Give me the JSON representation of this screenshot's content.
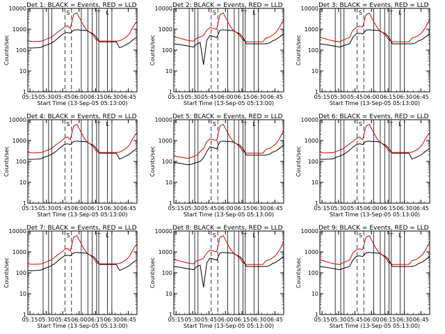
{
  "chart_data": {
    "type": "line",
    "layout_grid": "3x3",
    "y_scale": "log",
    "ylim": [
      1,
      10000
    ],
    "y_ticks": [
      1,
      10,
      100,
      1000,
      10000
    ],
    "y_tick_labels": [
      "1",
      "10",
      "100",
      "1000",
      "10000"
    ],
    "x_time_range": [
      "05:13",
      "06:53"
    ],
    "x_ticks_min": [
      2,
      17,
      32,
      47,
      62,
      77,
      92
    ],
    "x_tick_labels": [
      "05:15",
      "05:30",
      "05:45",
      "06:00",
      "06:15",
      "06:30",
      "06:45"
    ],
    "xlabel": "Start Time (13-Sep-05 05:13:00)",
    "ylabel": "Counts/sec",
    "legend": "in title",
    "colors": {
      "events": "#000000",
      "lld": "#cc0000",
      "axes": "#000000"
    },
    "time_min": [
      0,
      3,
      6,
      9,
      12,
      15,
      18,
      21,
      24,
      27,
      30,
      33,
      36,
      39,
      42,
      45,
      48,
      51,
      54,
      57,
      60,
      63,
      66,
      69,
      72,
      75,
      78,
      81,
      84,
      87,
      90,
      93,
      96,
      100
    ],
    "markers": {
      "solid_min": [
        14,
        19,
        22,
        49,
        55,
        59,
        63,
        65,
        73,
        77
      ],
      "dashed_min": [
        34,
        40
      ],
      "labels": [
        {
          "text": "S",
          "at_min": 37
        },
        {
          "text": "T",
          "at_min": 65
        },
        {
          "text": "L",
          "at_min": 73
        }
      ]
    },
    "panels": [
      {
        "title": "Det 1: BLACK = Events, RED = LLD",
        "series": [
          {
            "values": [
              130,
              125,
              128,
              130,
              135,
              160,
              180,
              210,
              260,
              350,
              480,
              620,
              700,
              650,
              900,
              950,
              900,
              900,
              850,
              700,
              600,
              400,
              250,
              250,
              250,
              250,
              250,
              250,
              130,
              150,
              180,
              220,
              300,
              420
            ]
          },
          {
            "values": [
              270,
              260,
              255,
              260,
              265,
              300,
              350,
              400,
              520,
              700,
              900,
              1200,
              1500,
              1100,
              5000,
              6000,
              3000,
              1500,
              900,
              700,
              500,
              300,
              270,
              270,
              270,
              270,
              270,
              270,
              280,
              330,
              420,
              600,
              1200,
              2500
            ]
          }
        ]
      },
      {
        "title": "Det 2: BLACK = Events, RED = LLD",
        "series": [
          {
            "values": [
              200,
              190,
              180,
              170,
              160,
              150,
              140,
              200,
              230,
              20,
              300,
              500,
              450,
              400,
              900,
              950,
              900,
              900,
              850,
              700,
              600,
              400,
              200,
              200,
              200,
              200,
              200,
              200,
              200,
              220,
              280,
              320,
              420,
              600
            ]
          },
          {
            "values": [
              450,
              400,
              360,
              330,
              300,
              280,
              270,
              380,
              420,
              500,
              900,
              1200,
              1100,
              1000,
              5000,
              6000,
              3000,
              1500,
              900,
              700,
              500,
              300,
              250,
              250,
              250,
              250,
              250,
              250,
              380,
              420,
              520,
              700,
              1200,
              3000
            ]
          }
        ]
      },
      {
        "title": "Det 3: BLACK = Events, RED = LLD",
        "series": [
          {
            "values": [
              200,
              190,
              180,
              170,
              160,
              150,
              140,
              160,
              180,
              200,
              400,
              600,
              650,
              600,
              900,
              950,
              900,
              900,
              850,
              700,
              600,
              400,
              200,
              200,
              200,
              200,
              200,
              200,
              200,
              220,
              280,
              320,
              420,
              600
            ]
          },
          {
            "values": [
              420,
              380,
              340,
              300,
              280,
              260,
              250,
              300,
              350,
              400,
              900,
              1200,
              1400,
              1300,
              5000,
              6000,
              3000,
              1500,
              900,
              700,
              500,
              300,
              250,
              250,
              250,
              250,
              250,
              250,
              380,
              420,
              520,
              700,
              1200,
              3000
            ]
          }
        ]
      },
      {
        "title": "Det 4: BLACK = Events, RED = LLD",
        "series": [
          {
            "values": [
              130,
              125,
              128,
              130,
              135,
              160,
              180,
              210,
              260,
              350,
              480,
              620,
              700,
              650,
              900,
              950,
              900,
              900,
              850,
              700,
              600,
              400,
              250,
              250,
              250,
              250,
              250,
              250,
              130,
              150,
              180,
              220,
              300,
              420
            ]
          },
          {
            "values": [
              270,
              260,
              255,
              260,
              265,
              300,
              350,
              400,
              520,
              700,
              900,
              1200,
              1500,
              1100,
              5000,
              6000,
              3000,
              1500,
              900,
              700,
              500,
              300,
              270,
              270,
              270,
              270,
              270,
              270,
              280,
              330,
              420,
              600,
              1200,
              2500
            ]
          }
        ]
      },
      {
        "title": "Det 5: BLACK = Events, RED = LLD",
        "series": [
          {
            "values": [
              90,
              85,
              80,
              75,
              70,
              70,
              80,
              90,
              100,
              150,
              300,
              500,
              450,
              400,
              900,
              950,
              900,
              900,
              850,
              700,
              600,
              400,
              200,
              200,
              200,
              200,
              200,
              200,
              200,
              220,
              280,
              320,
              420,
              600
            ]
          },
          {
            "values": [
              180,
              170,
              160,
              150,
              140,
              150,
              170,
              200,
              300,
              400,
              900,
              1200,
              1100,
              1000,
              5000,
              6000,
              3000,
              1500,
              900,
              700,
              500,
              300,
              250,
              250,
              250,
              250,
              250,
              250,
              380,
              420,
              520,
              700,
              1200,
              3000
            ]
          }
        ]
      },
      {
        "title": "Det 6: BLACK = Events, RED = LLD",
        "series": [
          {
            "values": [
              130,
              125,
              128,
              130,
              135,
              160,
              180,
              210,
              260,
              350,
              480,
              620,
              700,
              650,
              900,
              950,
              900,
              900,
              850,
              700,
              600,
              400,
              250,
              250,
              250,
              250,
              250,
              250,
              130,
              150,
              180,
              220,
              300,
              420
            ]
          },
          {
            "values": [
              270,
              260,
              255,
              260,
              265,
              300,
              350,
              400,
              520,
              700,
              900,
              1200,
              1500,
              1100,
              5000,
              6000,
              3000,
              1500,
              900,
              700,
              500,
              300,
              270,
              270,
              270,
              270,
              270,
              270,
              280,
              330,
              420,
              600,
              1200,
              2500
            ]
          }
        ]
      },
      {
        "title": "Det 7: BLACK = Events, RED = LLD",
        "series": [
          {
            "values": [
              130,
              125,
              128,
              130,
              135,
              160,
              180,
              210,
              260,
              350,
              480,
              620,
              700,
              650,
              900,
              950,
              900,
              900,
              850,
              700,
              600,
              400,
              250,
              250,
              250,
              250,
              250,
              250,
              130,
              150,
              180,
              220,
              300,
              420
            ]
          },
          {
            "values": [
              270,
              260,
              255,
              260,
              265,
              300,
              350,
              400,
              520,
              700,
              900,
              1200,
              1500,
              1100,
              5000,
              6000,
              3000,
              1500,
              900,
              700,
              500,
              300,
              270,
              270,
              270,
              270,
              270,
              270,
              280,
              330,
              420,
              600,
              1200,
              2500
            ]
          }
        ]
      },
      {
        "title": "Det 8: BLACK = Events, RED = LLD",
        "series": [
          {
            "values": [
              200,
              190,
              180,
              170,
              160,
              150,
              140,
              200,
              230,
              20,
              300,
              500,
              450,
              400,
              900,
              950,
              900,
              900,
              850,
              700,
              600,
              400,
              200,
              200,
              200,
              200,
              200,
              200,
              200,
              220,
              280,
              320,
              420,
              600
            ]
          },
          {
            "values": [
              450,
              400,
              360,
              330,
              300,
              280,
              270,
              380,
              420,
              500,
              900,
              1200,
              1100,
              1000,
              5000,
              6000,
              3000,
              1500,
              900,
              700,
              500,
              300,
              250,
              250,
              250,
              250,
              250,
              250,
              380,
              420,
              520,
              700,
              1200,
              3000
            ]
          }
        ]
      },
      {
        "title": "Det 9: BLACK = Events, RED = LLD",
        "series": [
          {
            "values": [
              200,
              190,
              180,
              170,
              160,
              150,
              140,
              160,
              180,
              200,
              400,
              600,
              650,
              600,
              900,
              950,
              900,
              900,
              850,
              700,
              600,
              400,
              200,
              200,
              200,
              200,
              200,
              200,
              200,
              220,
              280,
              320,
              420,
              600
            ]
          },
          {
            "values": [
              420,
              380,
              340,
              300,
              280,
              260,
              250,
              300,
              350,
              400,
              900,
              1200,
              1400,
              1300,
              5000,
              6000,
              3000,
              1500,
              900,
              700,
              500,
              300,
              250,
              250,
              250,
              250,
              250,
              250,
              380,
              420,
              520,
              700,
              1200,
              3000
            ]
          }
        ]
      }
    ]
  }
}
